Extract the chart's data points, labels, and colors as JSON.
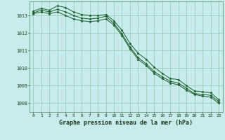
{
  "title": "Graphe pression niveau de la mer (hPa)",
  "background_color": "#c8ecec",
  "grid_color": "#99ccbb",
  "line_color": "#1a5c2a",
  "x_labels": [
    "0",
    "1",
    "2",
    "3",
    "4",
    "5",
    "6",
    "7",
    "8",
    "9",
    "10",
    "11",
    "12",
    "13",
    "14",
    "15",
    "16",
    "17",
    "18",
    "19",
    "20",
    "21",
    "22",
    "23"
  ],
  "ylim": [
    1007.5,
    1013.8
  ],
  "yticks": [
    1008,
    1009,
    1010,
    1011,
    1012,
    1013
  ],
  "series": [
    [
      1013.25,
      1013.4,
      1013.3,
      1013.55,
      1013.45,
      1013.2,
      1013.05,
      1013.0,
      1013.0,
      1013.05,
      1012.7,
      1012.15,
      1011.4,
      1010.85,
      1010.5,
      1010.05,
      1009.7,
      1009.4,
      1009.35,
      1009.0,
      1008.7,
      1008.65,
      1008.6,
      1008.2
    ],
    [
      1013.15,
      1013.3,
      1013.2,
      1013.35,
      1013.2,
      1013.0,
      1012.85,
      1012.8,
      1012.85,
      1012.95,
      1012.55,
      1011.95,
      1011.2,
      1010.6,
      1010.25,
      1009.8,
      1009.5,
      1009.25,
      1009.15,
      1008.85,
      1008.55,
      1008.5,
      1008.45,
      1008.1
    ],
    [
      1013.1,
      1013.2,
      1013.1,
      1013.2,
      1013.0,
      1012.8,
      1012.7,
      1012.65,
      1012.7,
      1012.8,
      1012.45,
      1011.85,
      1011.1,
      1010.5,
      1010.15,
      1009.7,
      1009.4,
      1009.15,
      1009.05,
      1008.75,
      1008.5,
      1008.4,
      1008.35,
      1008.0
    ]
  ]
}
